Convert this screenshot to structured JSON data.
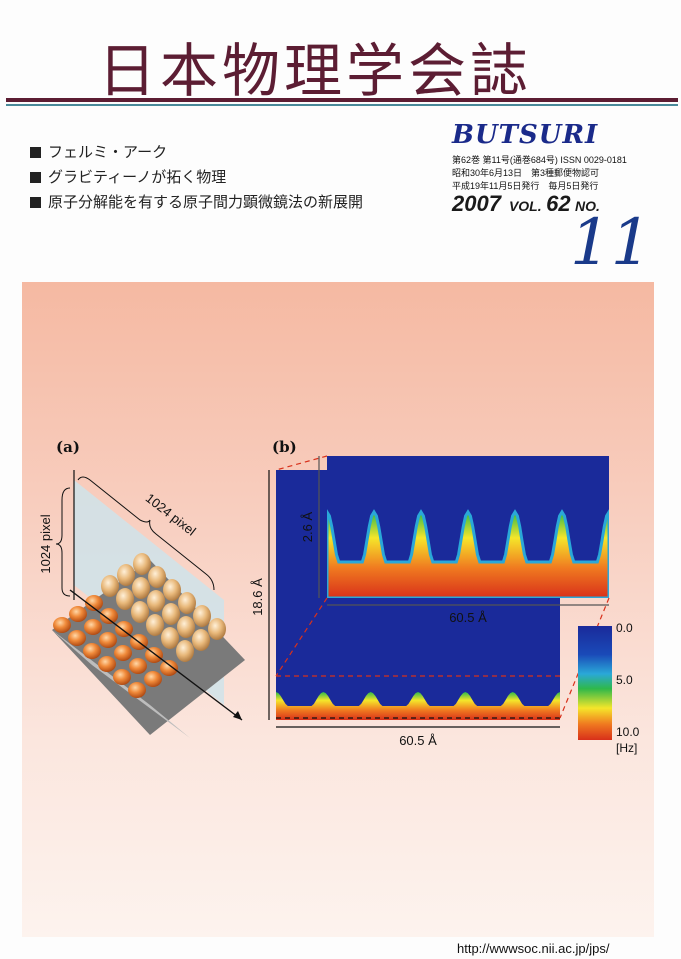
{
  "journal": {
    "title": "日本物理学会誌",
    "brand": "BUTSURI",
    "meta_line1": "第62巻 第11号(通巻684号) ISSN 0029-0181",
    "meta_line2": "昭和30年6月13日　第3種郵便物認可",
    "meta_line3": "平成19年11月5日発行　毎月5日発行",
    "year": "2007",
    "vol_label": "VOL.",
    "vol_number": "62",
    "no_label": "NO.",
    "issue": "11",
    "url": "http://wwwsoc.nii.ac.jp/jps/"
  },
  "topics": [
    {
      "text": "フェルミ・アーク"
    },
    {
      "text": "グラビティーノが拓く物理"
    },
    {
      "text": "原子分解能を有する原子間力顕微鏡法の新展開"
    }
  ],
  "figure": {
    "panel_a": {
      "label": "(a)",
      "dim_x": "1024 pixel",
      "dim_y": "1024 pixel"
    },
    "panel_b": {
      "label": "(b)",
      "inset_height": "2.6 Å",
      "inset_width": "60.5 Å",
      "main_height": "18.6 Å",
      "main_width": "60.5 Å",
      "colorbar_ticks": [
        "0.0",
        "5.0",
        "10.0"
      ],
      "colorbar_unit": "[Hz]"
    },
    "colors": {
      "deep_blue": "#1a2a9a",
      "cyan": "#2aa8d8",
      "green": "#2fb84a",
      "yellow": "#f5e62a",
      "orange": "#f07a20",
      "red": "#d8301a"
    }
  }
}
